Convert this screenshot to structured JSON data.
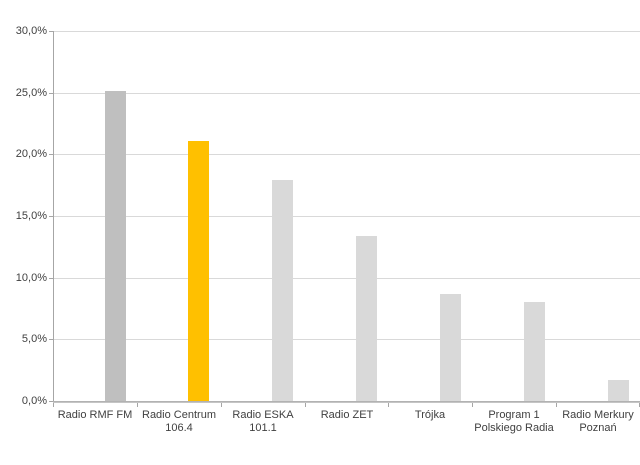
{
  "chart_data": {
    "type": "bar",
    "title": "",
    "xlabel": "",
    "ylabel": "",
    "categories": [
      "Radio RMF FM",
      "Radio Centrum 106.4",
      "Radio ESKA 101.1",
      "Radio ZET",
      "Trójka",
      "Program 1 Polskiego Radia",
      "Radio Merkury Poznań"
    ],
    "category_label_lines": [
      [
        "Radio RMF FM"
      ],
      [
        "Radio Centrum",
        "106.4"
      ],
      [
        "Radio ESKA",
        "101.1"
      ],
      [
        "Radio ZET"
      ],
      [
        "Trójka"
      ],
      [
        "Program 1",
        "Polskiego Radia"
      ],
      [
        "Radio Merkury",
        "Poznań"
      ]
    ],
    "values": [
      25.1,
      21.1,
      17.9,
      13.4,
      8.7,
      8.0,
      1.7
    ],
    "bar_colors": [
      "#BFBFBF",
      "#FFC000",
      "#D9D9D9",
      "#D9D9D9",
      "#D9D9D9",
      "#D9D9D9",
      "#D9D9D9"
    ],
    "ylim": [
      0,
      30
    ],
    "y_ticks": [
      0,
      5,
      10,
      15,
      20,
      25,
      30
    ],
    "y_tick_labels": [
      "0,0%",
      "5,0%",
      "10,0%",
      "15,0%",
      "20,0%",
      "25,0%",
      "30,0%"
    ],
    "grid": true,
    "legend": false
  },
  "colors": {
    "background": "#FFFFFF",
    "gridline": "#D9D9D9",
    "axis": "#A6A6A6",
    "text": "#404040",
    "highlight": "#FFC000",
    "bar_default": "#D9D9D9",
    "bar_first": "#BFBFBF"
  }
}
